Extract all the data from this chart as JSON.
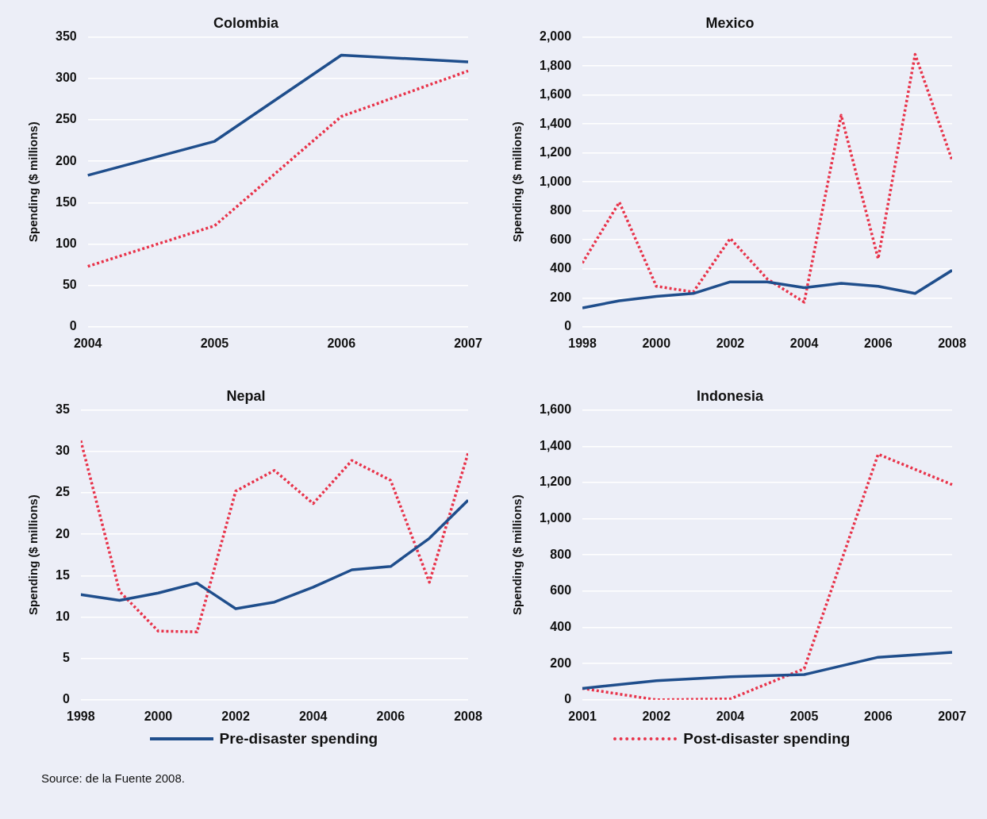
{
  "chart_data": [
    {
      "type": "line",
      "title": "Colombia",
      "ylabel": "Spending ($ millions)",
      "categories": [
        "2004",
        "2005",
        "2006",
        "2007"
      ],
      "ylim": [
        0,
        350
      ],
      "yticks": [
        0,
        50,
        100,
        150,
        200,
        250,
        300,
        350
      ],
      "grid": "y",
      "marker": "none",
      "legend": false,
      "series": [
        {
          "color": "#1f4e8c",
          "line_style": "solid",
          "values": [
            183,
            224,
            328,
            320
          ]
        },
        {
          "color": "#e8334a",
          "line_style": "dotted",
          "values": [
            73,
            122,
            254,
            309
          ]
        }
      ]
    },
    {
      "type": "line",
      "title": "Mexico",
      "ylabel": "Spending ($ millions)",
      "x": [
        1998,
        1999,
        2000,
        2001,
        2002,
        2003,
        2004,
        2005,
        2006,
        2007,
        2008
      ],
      "xlim": [
        1998,
        2008
      ],
      "xticks": [
        1998,
        2000,
        2002,
        2004,
        2006,
        2008
      ],
      "ylim": [
        0,
        2000
      ],
      "yticks": [
        0,
        200,
        400,
        600,
        800,
        {
          "value": 1000,
          "label": "1,000"
        },
        {
          "value": 1200,
          "label": "1,200"
        },
        {
          "value": 1400,
          "label": "1,400"
        },
        {
          "value": 1600,
          "label": "1,600"
        },
        {
          "value": 1800,
          "label": "1,800"
        },
        {
          "value": 2000,
          "label": "2,000"
        }
      ],
      "grid": "y",
      "marker": "none",
      "legend": false,
      "series": [
        {
          "color": "#1f4e8c",
          "line_style": "solid",
          "values": [
            130,
            180,
            210,
            230,
            310,
            310,
            270,
            300,
            280,
            230,
            390
          ]
        },
        {
          "color": "#e8334a",
          "line_style": "dotted",
          "values": [
            440,
            860,
            280,
            240,
            610,
            330,
            170,
            1460,
            470,
            1880,
            1150
          ]
        }
      ]
    },
    {
      "type": "line",
      "title": "Nepal",
      "ylabel": "Spending ($ millions)",
      "x": [
        1998,
        1999,
        2000,
        2001,
        2002,
        2003,
        2004,
        2005,
        2006,
        2007,
        2008
      ],
      "xlim": [
        1998,
        2008
      ],
      "xticks": [
        1998,
        2000,
        2002,
        2004,
        2006,
        2008
      ],
      "ylim": [
        0,
        35
      ],
      "yticks": [
        0,
        5,
        10,
        15,
        20,
        25,
        30,
        35
      ],
      "grid": "y",
      "marker": "none",
      "legend": "bottom",
      "annotations": [
        "Source: de la Fuente 2008."
      ],
      "series": [
        {
          "name": "Pre-disaster spending",
          "color": "#1f4e8c",
          "line_style": "solid",
          "values": [
            12.7,
            12.0,
            12.9,
            14.1,
            11.0,
            11.8,
            13.6,
            15.7,
            16.1,
            19.5,
            24.1
          ]
        },
        {
          "name": "Post-disaster spending",
          "color": "#e8334a",
          "line_style": "dotted",
          "values": [
            31.3,
            13.1,
            8.3,
            8.2,
            25.2,
            27.7,
            23.7,
            28.9,
            26.5,
            14.2,
            29.8
          ]
        }
      ]
    },
    {
      "type": "line",
      "title": "Indonesia",
      "ylabel": "Spending ($ millions)",
      "categories": [
        "2001",
        "2002",
        "2004",
        "2005",
        "2006",
        "2007"
      ],
      "ylim": [
        0,
        1600
      ],
      "yticks": [
        0,
        200,
        400,
        600,
        800,
        {
          "value": 1000,
          "label": "1,000"
        },
        {
          "value": 1200,
          "label": "1,200"
        },
        {
          "value": 1400,
          "label": "1,400"
        },
        {
          "value": 1600,
          "label": "1,600"
        }
      ],
      "grid": "y",
      "marker": "none",
      "legend": false,
      "series": [
        {
          "color": "#1f4e8c",
          "line_style": "solid",
          "values": [
            63,
            105,
            127,
            139,
            235,
            262
          ]
        },
        {
          "color": "#e8334a",
          "line_style": "dotted",
          "values": [
            63,
            0,
            5,
            172,
            1356,
            1188
          ]
        }
      ]
    }
  ]
}
